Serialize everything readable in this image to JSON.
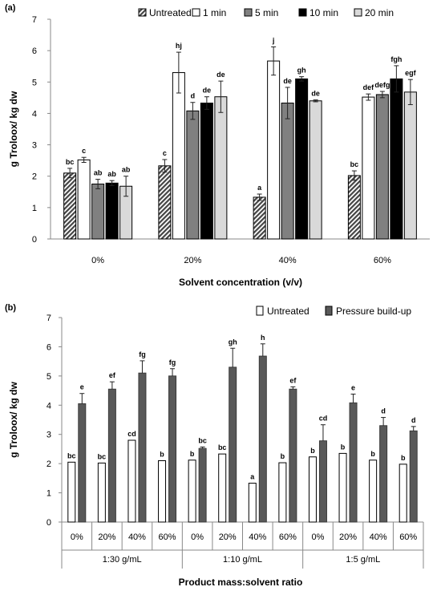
{
  "chart_data": [
    {
      "panel_label": "(a)",
      "type": "bar",
      "categories": [
        "0%",
        "20%",
        "40%",
        "60%"
      ],
      "xlabel": "Solvent concentration (v/v)",
      "ylabel": "g Troloox/ kg dw",
      "ylim": [
        0,
        7
      ],
      "yticks": [
        "0",
        "1",
        "2",
        "3",
        "4",
        "5",
        "6",
        "7"
      ],
      "grid": false,
      "legend_position": "top",
      "series": [
        {
          "name": "Untreated",
          "pattern": "hatch",
          "color": "#555555",
          "values": [
            2.1,
            2.33,
            1.33,
            2.02
          ],
          "errors": [
            0.15,
            0.2,
            0.1,
            0.15
          ],
          "labels": [
            "bc",
            "c",
            "a",
            "bc"
          ]
        },
        {
          "name": "1 min",
          "pattern": "solid",
          "color": "#ffffff",
          "values": [
            2.52,
            5.3,
            5.67,
            4.52
          ],
          "errors": [
            0.08,
            0.65,
            0.45,
            0.1
          ],
          "labels": [
            "c",
            "hj",
            "j",
            "def"
          ]
        },
        {
          "name": "5 min",
          "pattern": "solid",
          "color": "#808080",
          "values": [
            1.75,
            4.08,
            4.33,
            4.6
          ],
          "errors": [
            0.15,
            0.27,
            0.5,
            0.1
          ],
          "labels": [
            "ab",
            "d",
            "de",
            "defg"
          ]
        },
        {
          "name": "10 min",
          "pattern": "solid",
          "color": "#000000",
          "values": [
            1.78,
            4.33,
            5.1,
            5.1
          ],
          "errors": [
            0.08,
            0.2,
            0.07,
            0.42
          ],
          "labels": [
            "ab",
            "de",
            "gh",
            "fgh"
          ]
        },
        {
          "name": "20 min",
          "pattern": "solid",
          "color": "#d9d9d9",
          "values": [
            1.68,
            4.53,
            4.4,
            4.68
          ],
          "errors": [
            0.32,
            0.5,
            0.03,
            0.4
          ],
          "labels": [
            "ab",
            "de",
            "de",
            "egf"
          ]
        }
      ]
    },
    {
      "panel_label": "(b)",
      "type": "bar",
      "groups": [
        "1:30 g/mL",
        "1:10 g/mL",
        "1:5 g/mL"
      ],
      "categories": [
        "0%",
        "20%",
        "40%",
        "60%",
        "0%",
        "20%",
        "40%",
        "60%",
        "0%",
        "20%",
        "40%",
        "60%"
      ],
      "xlabel": "Product mass:solvent ratio",
      "ylabel": "g Troloox/ kg dw",
      "ylim": [
        0,
        7
      ],
      "yticks": [
        "0",
        "1",
        "2",
        "3",
        "4",
        "5",
        "6",
        "7"
      ],
      "grid": false,
      "legend_position": "top",
      "series": [
        {
          "name": "Untreated",
          "color": "#ffffff",
          "values": [
            2.05,
            2.02,
            2.8,
            2.1,
            2.12,
            2.33,
            1.33,
            2.03,
            2.23,
            2.35,
            2.12,
            1.98
          ],
          "labels": [
            "bc",
            "bc",
            "cd",
            "b",
            "b",
            "bc",
            "a",
            "b",
            "b",
            "b",
            "b",
            "b"
          ]
        },
        {
          "name": "Pressure build-up",
          "color": "#595959",
          "values": [
            4.05,
            4.55,
            5.1,
            5.0,
            2.52,
            5.3,
            5.68,
            4.55,
            2.78,
            4.08,
            3.3,
            3.12
          ],
          "errors": [
            0.35,
            0.25,
            0.42,
            0.25,
            0.05,
            0.65,
            0.42,
            0.08,
            0.55,
            0.3,
            0.28,
            0.15
          ],
          "labels": [
            "e",
            "ef",
            "fg",
            "fg",
            "bc",
            "gh",
            "h",
            "ef",
            "cd",
            "e",
            "d",
            "d"
          ]
        }
      ]
    }
  ]
}
